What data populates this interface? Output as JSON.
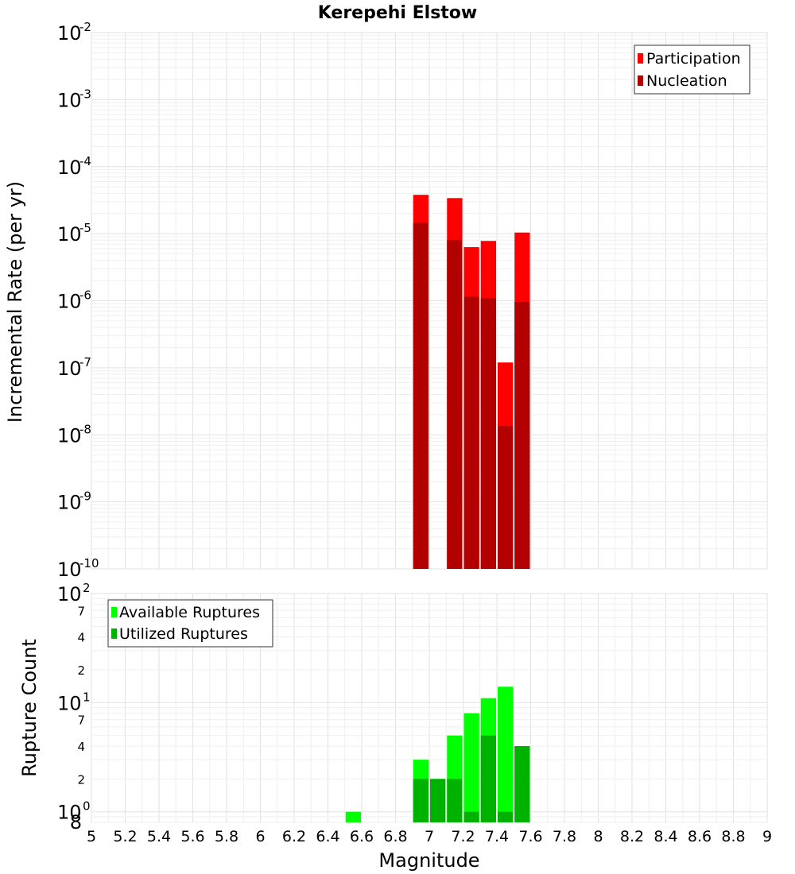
{
  "chart_data": [
    {
      "type": "bar",
      "title": "Kerepehi Elstow",
      "xlabel": "Magnitude",
      "ylabel": "Incremental Rate (per yr)",
      "yscale": "log",
      "ylim": [
        1e-10,
        0.01
      ],
      "xlim": [
        5,
        9
      ],
      "bar_width": 0.1,
      "legend_position": "top-right",
      "series": [
        {
          "name": "Participation",
          "color": "#ff0000",
          "x": [
            6.95,
            7.15,
            7.25,
            7.35,
            7.45,
            7.55
          ],
          "values": [
            3.8e-05,
            3.4e-05,
            6.3e-06,
            7.8e-06,
            1.2e-07,
            1.04e-05
          ]
        },
        {
          "name": "Nucleation",
          "color": "#b20000",
          "x": [
            6.95,
            7.15,
            7.25,
            7.35,
            7.45,
            7.55
          ],
          "values": [
            1.45e-05,
            8e-06,
            1.15e-06,
            1.1e-06,
            1.35e-08,
            9.6e-07
          ]
        }
      ],
      "y_ticks": [
        {
          "base": "10",
          "exp": "-2"
        },
        {
          "base": "10",
          "exp": "-3"
        },
        {
          "base": "10",
          "exp": "-4"
        },
        {
          "base": "10",
          "exp": "-5"
        },
        {
          "base": "10",
          "exp": "-6"
        },
        {
          "base": "10",
          "exp": "-7"
        },
        {
          "base": "10",
          "exp": "-8"
        },
        {
          "base": "10",
          "exp": "-9"
        },
        {
          "base": "10",
          "exp": "-10"
        }
      ],
      "legend": [
        "Participation",
        "Nucleation"
      ]
    },
    {
      "type": "bar",
      "xlabel": "Magnitude",
      "ylabel": "Rupture Count",
      "yscale": "log",
      "ylim": [
        0.8,
        100
      ],
      "xlim": [
        5,
        9
      ],
      "bar_width": 0.1,
      "legend_position": "top-left",
      "series": [
        {
          "name": "Available Ruptures",
          "color": "#00ff00",
          "x": [
            6.55,
            6.95,
            7.05,
            7.15,
            7.25,
            7.35,
            7.45,
            7.55
          ],
          "values": [
            1,
            3,
            2,
            5,
            8,
            11,
            14,
            4
          ]
        },
        {
          "name": "Utilized Ruptures",
          "color": "#00b200",
          "x": [
            6.95,
            7.05,
            7.15,
            7.25,
            7.35,
            7.45,
            7.55
          ],
          "values": [
            2,
            2,
            2,
            1,
            5,
            1,
            4
          ]
        }
      ],
      "y_major_ticks": [
        {
          "base": "10",
          "exp": "2"
        },
        {
          "base": "10",
          "exp": "1"
        },
        {
          "base": "10",
          "exp": "0"
        }
      ],
      "y_minor_ticks": [
        "7",
        "4",
        "2",
        "7",
        "4",
        "2",
        "8"
      ],
      "legend": [
        "Available Ruptures",
        "Utilized Ruptures"
      ]
    }
  ],
  "x_ticks": [
    "5",
    "5.2",
    "5.4",
    "5.6",
    "5.8",
    "6",
    "6.2",
    "6.4",
    "6.6",
    "6.8",
    "7",
    "7.2",
    "7.4",
    "7.6",
    "7.8",
    "8",
    "8.2",
    "8.4",
    "8.6",
    "8.8",
    "9"
  ]
}
